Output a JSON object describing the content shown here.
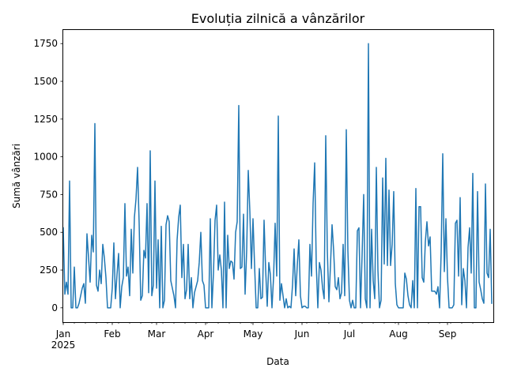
{
  "chart_data": {
    "type": "line",
    "title": "Evoluția zilnică a vânzărilor",
    "xlabel": "Data",
    "ylabel": "Sumă vânzări",
    "x_start": "2025-01-01",
    "x_end": "2025-09-30",
    "xlim": [
      "2025-01-01",
      "2025-09-30"
    ],
    "ylim": [
      -95,
      1840
    ],
    "grid": false,
    "legend": "none",
    "line_color": "#1f77b4",
    "y_ticks": [
      0,
      250,
      500,
      750,
      1000,
      1250,
      1500,
      1750
    ],
    "y_tick_labels": [
      "0",
      "250",
      "500",
      "750",
      "1000",
      "1250",
      "1500",
      "1750"
    ],
    "x_month_ticks": [
      {
        "date": "2025-01-01",
        "label": "Jan",
        "sublabel": "2025"
      },
      {
        "date": "2025-02-01",
        "label": "Feb",
        "sublabel": ""
      },
      {
        "date": "2025-03-01",
        "label": "Mar",
        "sublabel": ""
      },
      {
        "date": "2025-04-01",
        "label": "Apr",
        "sublabel": ""
      },
      {
        "date": "2025-05-01",
        "label": "May",
        "sublabel": ""
      },
      {
        "date": "2025-06-01",
        "label": "Jun",
        "sublabel": ""
      },
      {
        "date": "2025-07-01",
        "label": "Jul",
        "sublabel": ""
      },
      {
        "date": "2025-08-01",
        "label": "Aug",
        "sublabel": ""
      },
      {
        "date": "2025-09-01",
        "label": "Sep",
        "sublabel": ""
      }
    ],
    "series": [
      {
        "values": [
          530,
          90,
          170,
          90,
          840,
          0,
          0,
          270,
          0,
          0,
          30,
          80,
          130,
          160,
          30,
          490,
          330,
          170,
          480,
          370,
          1220,
          150,
          110,
          250,
          160,
          420,
          330,
          200,
          0,
          0,
          0,
          130,
          430,
          60,
          220,
          360,
          0,
          140,
          200,
          690,
          210,
          270,
          80,
          520,
          230,
          600,
          720,
          930,
          560,
          50,
          80,
          380,
          330,
          690,
          100,
          1040,
          80,
          150,
          840,
          130,
          450,
          0,
          540,
          0,
          50,
          550,
          610,
          570,
          180,
          130,
          80,
          0,
          450,
          600,
          680,
          200,
          420,
          60,
          120,
          420,
          60,
          200,
          0,
          100,
          140,
          180,
          300,
          500,
          180,
          150,
          0,
          0,
          0,
          590,
          0,
          230,
          580,
          680,
          250,
          350,
          250,
          0,
          700,
          0,
          480,
          260,
          310,
          300,
          190,
          500,
          570,
          1340,
          260,
          270,
          620,
          90,
          380,
          910,
          640,
          260,
          590,
          280,
          0,
          0,
          260,
          60,
          70,
          580,
          250,
          10,
          300,
          220,
          0,
          200,
          560,
          210,
          1270,
          50,
          160,
          80,
          0,
          60,
          0,
          10,
          0,
          150,
          390,
          80,
          280,
          450,
          80,
          0,
          10,
          10,
          0,
          0,
          420,
          210,
          690,
          960,
          290,
          0,
          300,
          250,
          130,
          60,
          1140,
          380,
          40,
          280,
          550,
          380,
          140,
          120,
          200,
          60,
          100,
          420,
          80,
          1180,
          380,
          50,
          0,
          50,
          0,
          0,
          510,
          530,
          0,
          350,
          750,
          60,
          0,
          1750,
          0,
          520,
          180,
          60,
          930,
          250,
          0,
          50,
          860,
          290,
          990,
          280,
          780,
          280,
          420,
          770,
          160,
          20,
          0,
          0,
          0,
          0,
          230,
          190,
          80,
          20,
          0,
          180,
          0,
          790,
          0,
          670,
          670,
          200,
          170,
          440,
          570,
          410,
          470,
          110,
          110,
          110,
          90,
          140,
          0,
          370,
          1020,
          240,
          590,
          200,
          0,
          0,
          0,
          20,
          560,
          580,
          210,
          730,
          20,
          260,
          180,
          0,
          400,
          530,
          230,
          890,
          0,
          0,
          770,
          170,
          120,
          60,
          30,
          820,
          230,
          200,
          520,
          30
        ]
      }
    ]
  }
}
